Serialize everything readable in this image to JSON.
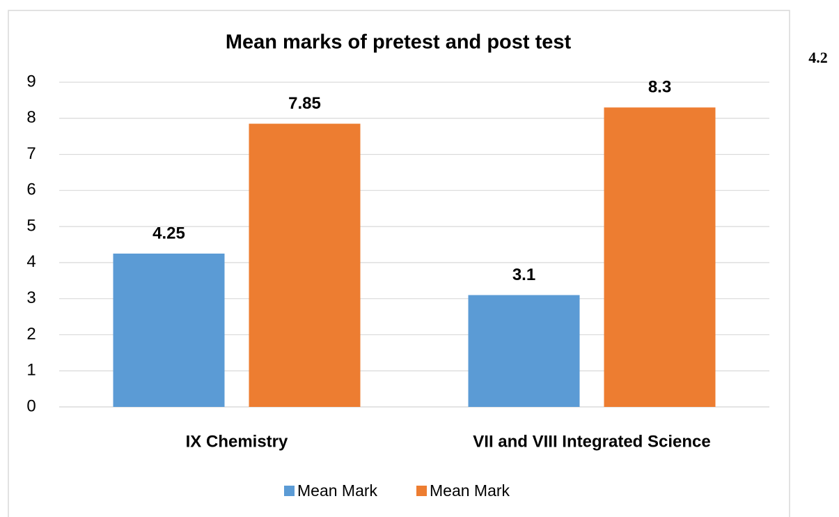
{
  "chart_data": {
    "type": "bar",
    "title": "Mean marks of pretest and post test",
    "categories": [
      "IX Chemistry",
      "VII and VIII Integrated Science"
    ],
    "series": [
      {
        "name": "Mean Mark",
        "color": "#5b9bd5",
        "values": [
          4.25,
          3.1
        ]
      },
      {
        "name": "Mean Mark",
        "color": "#ed7d31",
        "values": [
          7.85,
          8.3
        ]
      }
    ],
    "ylim": [
      0,
      9
    ],
    "yticks": [
      0,
      1,
      2,
      3,
      4,
      5,
      6,
      7,
      8,
      9
    ],
    "grid": true,
    "legend": "bottom"
  },
  "margin_text": "4.2"
}
